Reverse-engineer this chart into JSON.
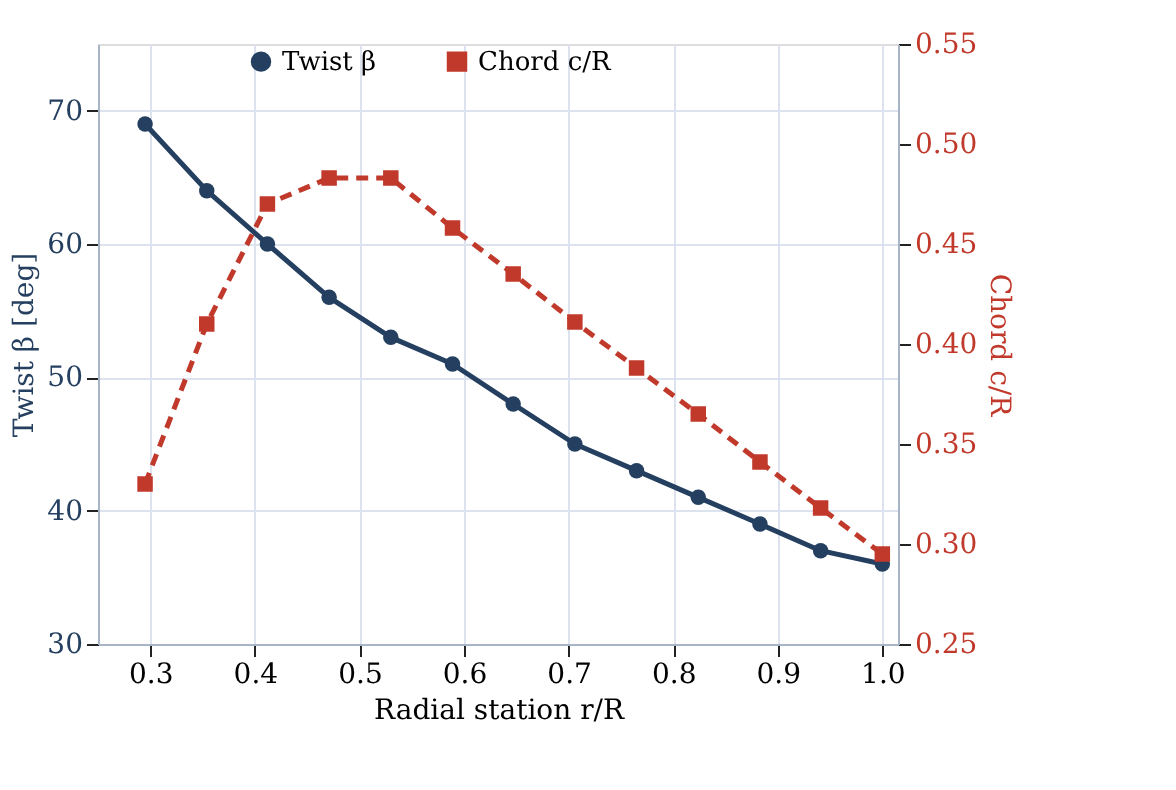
{
  "chart_data": {
    "type": "line",
    "xlabel": "Radial station  r/R",
    "ylabel": "Twist  β  [deg]",
    "y2label": "Chord  c/R",
    "x": [
      0.295,
      0.354,
      0.412,
      0.471,
      0.53,
      0.589,
      0.647,
      0.706,
      0.765,
      0.824,
      0.883,
      0.941,
      1.0
    ],
    "series": [
      {
        "name": "Twist β",
        "color": "#243f5f",
        "marker": "circle",
        "line_style": "solid",
        "values": [
          69,
          64,
          60,
          56,
          53,
          51,
          48,
          45,
          43,
          41,
          39,
          37,
          36
        ]
      },
      {
        "name": "Chord c/R",
        "color": "#c0392b",
        "marker": "square",
        "line_style": "dashed",
        "axis": "y2",
        "values": [
          0.33,
          0.41,
          0.47,
          0.483,
          0.483,
          0.458,
          0.435,
          0.411,
          0.388,
          0.365,
          0.341,
          0.318,
          0.295
        ]
      }
    ],
    "xlim": [
      0.25,
      1.015
    ],
    "xticks": [
      0.3,
      0.4,
      0.5,
      0.6,
      0.7,
      0.8,
      0.9,
      {
        "value": 1,
        "label": "1.0"
      }
    ],
    "ylim": [
      30,
      75
    ],
    "yticks": [
      30,
      40,
      50,
      60,
      70
    ],
    "y2lim": [
      0.25,
      0.55
    ],
    "y2ticks": [
      0.25,
      {
        "value": 0.3,
        "label": "0.30"
      },
      0.35,
      {
        "value": 0.4,
        "label": "0.40"
      },
      0.45,
      {
        "value": 0.5,
        "label": "0.50"
      },
      0.55
    ],
    "grid": true,
    "legend": "top"
  }
}
